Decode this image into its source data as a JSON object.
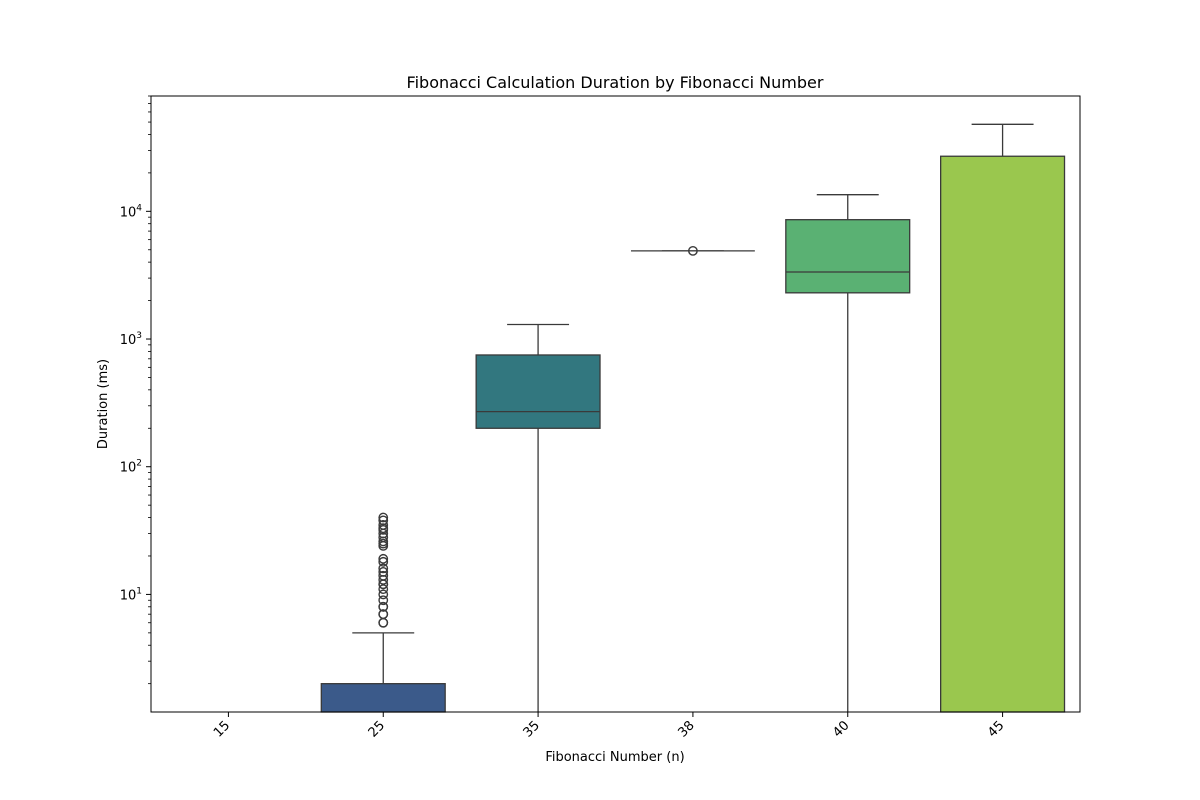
{
  "chart_data": {
    "type": "box",
    "title": "Fibonacci Calculation Duration by Fibonacci Number",
    "xlabel": "Fibonacci Number (n)",
    "ylabel": "Duration (ms)",
    "yscale": "log",
    "ylim": [
      1.2,
      80000
    ],
    "categories": [
      "15",
      "25",
      "35",
      "38",
      "40",
      "45"
    ],
    "y_major_ticks": [
      {
        "value": 10,
        "base": "10",
        "exp": "1"
      },
      {
        "value": 100,
        "base": "10",
        "exp": "2"
      },
      {
        "value": 1000,
        "base": "10",
        "exp": "3"
      },
      {
        "value": 10000,
        "base": "10",
        "exp": "4"
      }
    ],
    "boxes": [
      {
        "category": "15",
        "present": false
      },
      {
        "category": "25",
        "q1": 0,
        "median": 0,
        "q3": 2,
        "whisker_low": 0,
        "whisker_high": 5,
        "outliers": [
          6,
          6,
          7,
          7,
          8,
          8,
          9,
          10,
          11,
          12,
          12,
          13,
          14,
          15,
          16,
          18,
          19,
          24,
          25,
          26,
          28,
          30,
          32,
          33,
          35,
          38,
          40
        ],
        "color": "#3b5a8a"
      },
      {
        "category": "35",
        "q1": 200,
        "median": 270,
        "q3": 750,
        "whisker_low": 0,
        "whisker_high": 1300,
        "outliers": [],
        "color": "#32777f"
      },
      {
        "category": "38",
        "q1": 4900,
        "median": 4900,
        "q3": 4900,
        "whisker_low": 4900,
        "whisker_high": 4900,
        "outliers": [
          4900
        ],
        "color": "#2e8f7c"
      },
      {
        "category": "40",
        "q1": 2300,
        "median": 3350,
        "q3": 8600,
        "whisker_low": 0,
        "whisker_high": 13500,
        "outliers": [],
        "color": "#5ab173"
      },
      {
        "category": "45",
        "q1": 0,
        "median": 0,
        "q3": 27000,
        "whisker_low": 0,
        "whisker_high": 48000,
        "outliers": [],
        "color": "#9ac74e"
      }
    ],
    "grid": false,
    "legend": "none"
  }
}
